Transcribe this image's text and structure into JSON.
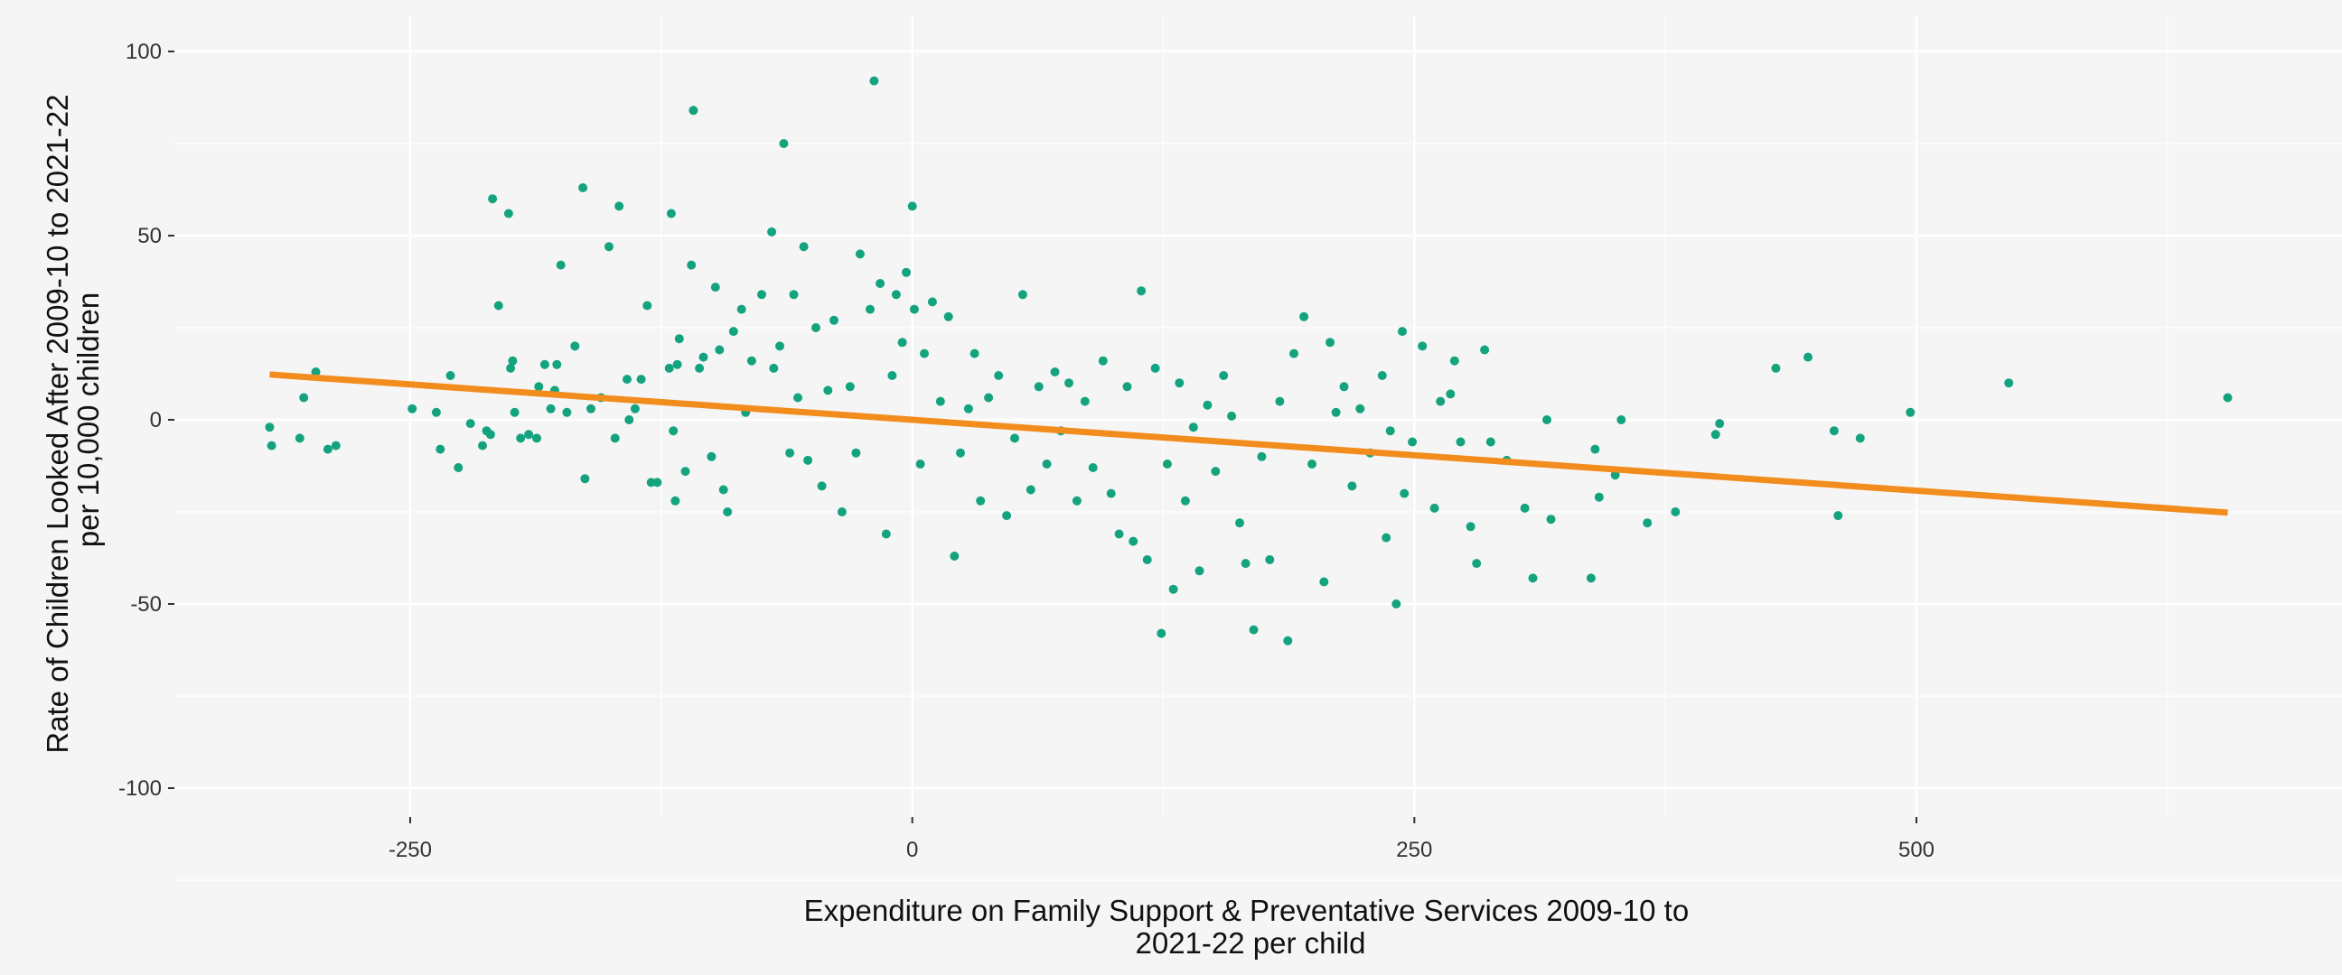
{
  "chart_data": {
    "type": "scatter",
    "title": "",
    "xlabel_lines": [
      "Expenditure on Family Support & Preventative Services 2009-10 to",
      "2021-22 per child"
    ],
    "ylabel_lines": [
      "Rate of Children Looked After 2009-10 to 2021-22",
      "per 10,000 children"
    ],
    "xlim": [
      -370,
      690
    ],
    "ylim": [
      -110,
      110
    ],
    "x_ticks": [
      -250,
      0,
      250,
      500
    ],
    "x_tick_labels": [
      "-250",
      "0",
      "250",
      "500"
    ],
    "y_ticks": [
      100,
      50,
      0,
      -50,
      -100
    ],
    "y_tick_labels": [
      "100",
      "50",
      "0",
      "-50",
      "-100"
    ],
    "grid": true,
    "legend": "none",
    "colors": {
      "background": "#f5f5f5",
      "grid": "#ffffff",
      "points": "#14a37f",
      "trend": "#f28c1c"
    },
    "trend_line": {
      "x": [
        -320,
        655
      ],
      "y": [
        12.3,
        -25.2
      ]
    },
    "series": [
      {
        "points": [
          [
            -320,
            -2
          ],
          [
            -319,
            -7
          ],
          [
            -305,
            -5
          ],
          [
            -303,
            6
          ],
          [
            -297,
            13
          ],
          [
            -291,
            -8
          ],
          [
            -287,
            -7
          ],
          [
            -249,
            3
          ],
          [
            -237,
            2
          ],
          [
            -235,
            -8
          ],
          [
            -230,
            12
          ],
          [
            -226,
            -13
          ],
          [
            -220,
            -1
          ],
          [
            -214,
            -7
          ],
          [
            -212,
            -3
          ],
          [
            -210,
            -4
          ],
          [
            -209,
            60
          ],
          [
            -206,
            31
          ],
          [
            -201,
            56
          ],
          [
            -200,
            14
          ],
          [
            -199,
            16
          ],
          [
            -198,
            2
          ],
          [
            -195,
            -5
          ],
          [
            -191,
            -4
          ],
          [
            -187,
            -5
          ],
          [
            -186,
            9
          ],
          [
            -183,
            15
          ],
          [
            -180,
            3
          ],
          [
            -178,
            8
          ],
          [
            -177,
            15
          ],
          [
            -175,
            42
          ],
          [
            -172,
            2
          ],
          [
            -168,
            20
          ],
          [
            -164,
            63
          ],
          [
            -163,
            -16
          ],
          [
            -160,
            3
          ],
          [
            -155,
            6
          ],
          [
            -151,
            47
          ],
          [
            -148,
            -5
          ],
          [
            -146,
            58
          ],
          [
            -142,
            11
          ],
          [
            -141,
            0
          ],
          [
            -138,
            3
          ],
          [
            -135,
            11
          ],
          [
            -132,
            31
          ],
          [
            -130,
            -17
          ],
          [
            -127,
            -17
          ],
          [
            -121,
            14
          ],
          [
            -120,
            56
          ],
          [
            -119,
            -3
          ],
          [
            -118,
            -22
          ],
          [
            -117,
            15
          ],
          [
            -116,
            22
          ],
          [
            -113,
            -14
          ],
          [
            -110,
            42
          ],
          [
            -109,
            84
          ],
          [
            -106,
            14
          ],
          [
            -104,
            17
          ],
          [
            -100,
            -10
          ],
          [
            -98,
            36
          ],
          [
            -96,
            19
          ],
          [
            -94,
            -19
          ],
          [
            -92,
            -25
          ],
          [
            -89,
            24
          ],
          [
            -85,
            30
          ],
          [
            -83,
            2
          ],
          [
            -80,
            16
          ],
          [
            -75,
            34
          ],
          [
            -70,
            51
          ],
          [
            -69,
            14
          ],
          [
            -66,
            20
          ],
          [
            -64,
            75
          ],
          [
            -61,
            -9
          ],
          [
            -59,
            34
          ],
          [
            -57,
            6
          ],
          [
            -54,
            47
          ],
          [
            -52,
            -11
          ],
          [
            -48,
            25
          ],
          [
            -45,
            -18
          ],
          [
            -42,
            8
          ],
          [
            -39,
            27
          ],
          [
            -35,
            -25
          ],
          [
            -31,
            9
          ],
          [
            -28,
            -9
          ],
          [
            -26,
            45
          ],
          [
            -21,
            30
          ],
          [
            -19,
            92
          ],
          [
            -16,
            37
          ],
          [
            -13,
            -31
          ],
          [
            -10,
            12
          ],
          [
            -8,
            34
          ],
          [
            -5,
            21
          ],
          [
            -3,
            40
          ],
          [
            0,
            58
          ],
          [
            1,
            30
          ],
          [
            4,
            -12
          ],
          [
            6,
            18
          ],
          [
            10,
            32
          ],
          [
            14,
            5
          ],
          [
            18,
            28
          ],
          [
            21,
            -37
          ],
          [
            24,
            -9
          ],
          [
            28,
            3
          ],
          [
            31,
            18
          ],
          [
            34,
            -22
          ],
          [
            38,
            6
          ],
          [
            43,
            12
          ],
          [
            47,
            -26
          ],
          [
            51,
            -5
          ],
          [
            55,
            34
          ],
          [
            59,
            -19
          ],
          [
            63,
            9
          ],
          [
            67,
            -12
          ],
          [
            71,
            13
          ],
          [
            74,
            -3
          ],
          [
            78,
            10
          ],
          [
            82,
            -22
          ],
          [
            86,
            5
          ],
          [
            90,
            -13
          ],
          [
            95,
            16
          ],
          [
            99,
            -20
          ],
          [
            103,
            -31
          ],
          [
            107,
            9
          ],
          [
            110,
            -33
          ],
          [
            114,
            35
          ],
          [
            117,
            -38
          ],
          [
            121,
            14
          ],
          [
            124,
            -58
          ],
          [
            127,
            -12
          ],
          [
            130,
            -46
          ],
          [
            133,
            10
          ],
          [
            136,
            -22
          ],
          [
            140,
            -2
          ],
          [
            143,
            -41
          ],
          [
            147,
            4
          ],
          [
            151,
            -14
          ],
          [
            155,
            12
          ],
          [
            159,
            1
          ],
          [
            163,
            -28
          ],
          [
            166,
            -39
          ],
          [
            170,
            -57
          ],
          [
            174,
            -10
          ],
          [
            178,
            -38
          ],
          [
            183,
            5
          ],
          [
            187,
            -60
          ],
          [
            190,
            18
          ],
          [
            195,
            28
          ],
          [
            199,
            -12
          ],
          [
            205,
            -44
          ],
          [
            208,
            21
          ],
          [
            211,
            2
          ],
          [
            215,
            9
          ],
          [
            219,
            -18
          ],
          [
            223,
            3
          ],
          [
            228,
            -9
          ],
          [
            234,
            12
          ],
          [
            236,
            -32
          ],
          [
            238,
            -3
          ],
          [
            241,
            -50
          ],
          [
            244,
            24
          ],
          [
            245,
            -20
          ],
          [
            249,
            -6
          ],
          [
            254,
            20
          ],
          [
            260,
            -24
          ],
          [
            263,
            5
          ],
          [
            268,
            7
          ],
          [
            270,
            16
          ],
          [
            273,
            -6
          ],
          [
            278,
            -29
          ],
          [
            281,
            -39
          ],
          [
            285,
            19
          ],
          [
            288,
            -6
          ],
          [
            296,
            -11
          ],
          [
            305,
            -24
          ],
          [
            309,
            -43
          ],
          [
            316,
            0
          ],
          [
            318,
            -27
          ],
          [
            338,
            -43
          ],
          [
            340,
            -8
          ],
          [
            342,
            -21
          ],
          [
            350,
            -15
          ],
          [
            353,
            0
          ],
          [
            366,
            -28
          ],
          [
            380,
            -25
          ],
          [
            400,
            -4
          ],
          [
            402,
            -1
          ],
          [
            430,
            14
          ],
          [
            446,
            17
          ],
          [
            459,
            -3
          ],
          [
            461,
            -26
          ],
          [
            472,
            -5
          ],
          [
            497,
            2
          ],
          [
            546,
            10
          ],
          [
            655,
            6
          ]
        ]
      }
    ]
  }
}
